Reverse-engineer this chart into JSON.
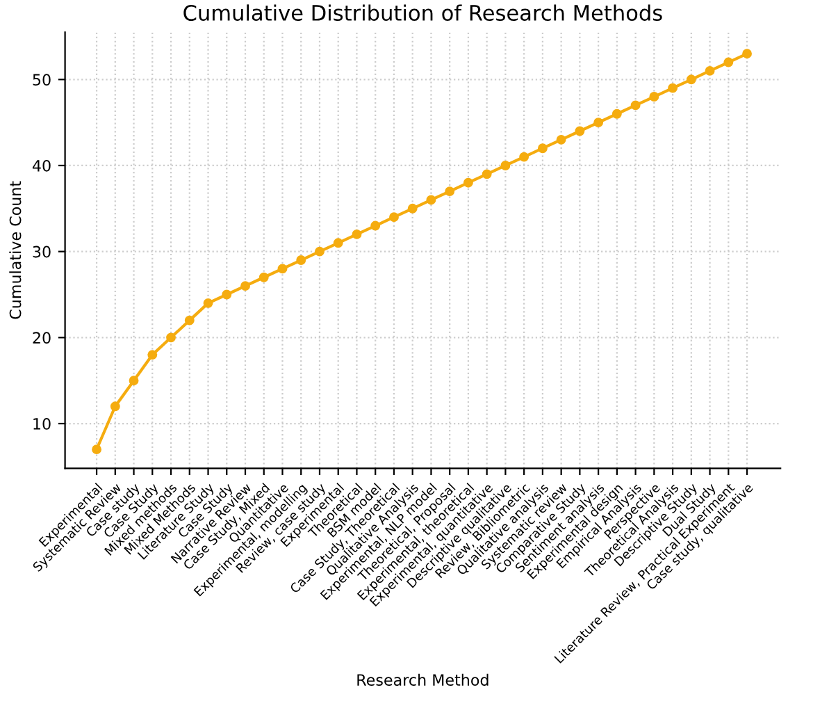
{
  "chart_data": {
    "type": "line",
    "title": "Cumulative Distribution of Research Methods",
    "xlabel": "Research Method",
    "ylabel": "Cumulative Count",
    "categories": [
      "Experimental",
      "Systematic Review",
      "Case study",
      "Case Study",
      "Mixed methods",
      "Mixed Methods",
      "Literature Study",
      "Case Study",
      "Narrative Review",
      "Case Study, Mixed",
      "Quantitative",
      "Experimental, modelling",
      "Review, case study",
      "Experimental",
      "Theoretical",
      "BSM model",
      "Case Study, Theoretical",
      "Qualitative Analysis",
      "Experimental, NLP model",
      "Theoretical, Proposal",
      "Experimental, theoretical",
      "Experimental, quantitative",
      "Descriptive qualitative",
      "Review, Bibliometric",
      "Qualitative analysis",
      "Systematic review",
      "Comparative Study",
      "Sentiment analysis",
      "Experimental design",
      "Empirical Analysis",
      "Perspective",
      "Theoretical Analysis",
      "Descriptive Study",
      "Dual Study",
      "Literature Review, Practical Experiment",
      "Case study, qualitative"
    ],
    "series": [
      {
        "color": "#f5ac0f",
        "values": [
          7,
          12,
          15,
          18,
          20,
          22,
          24,
          25,
          26,
          27,
          28,
          29,
          30,
          31,
          32,
          33,
          34,
          35,
          36,
          37,
          38,
          39,
          40,
          41,
          42,
          43,
          44,
          45,
          46,
          47,
          48,
          49,
          50,
          51,
          52,
          53
        ]
      }
    ],
    "ylim": [
      4.8,
      55.5
    ],
    "yticks": [
      10,
      20,
      30,
      40,
      50
    ],
    "grid": true,
    "marker": "circle",
    "line_style": "solid"
  }
}
